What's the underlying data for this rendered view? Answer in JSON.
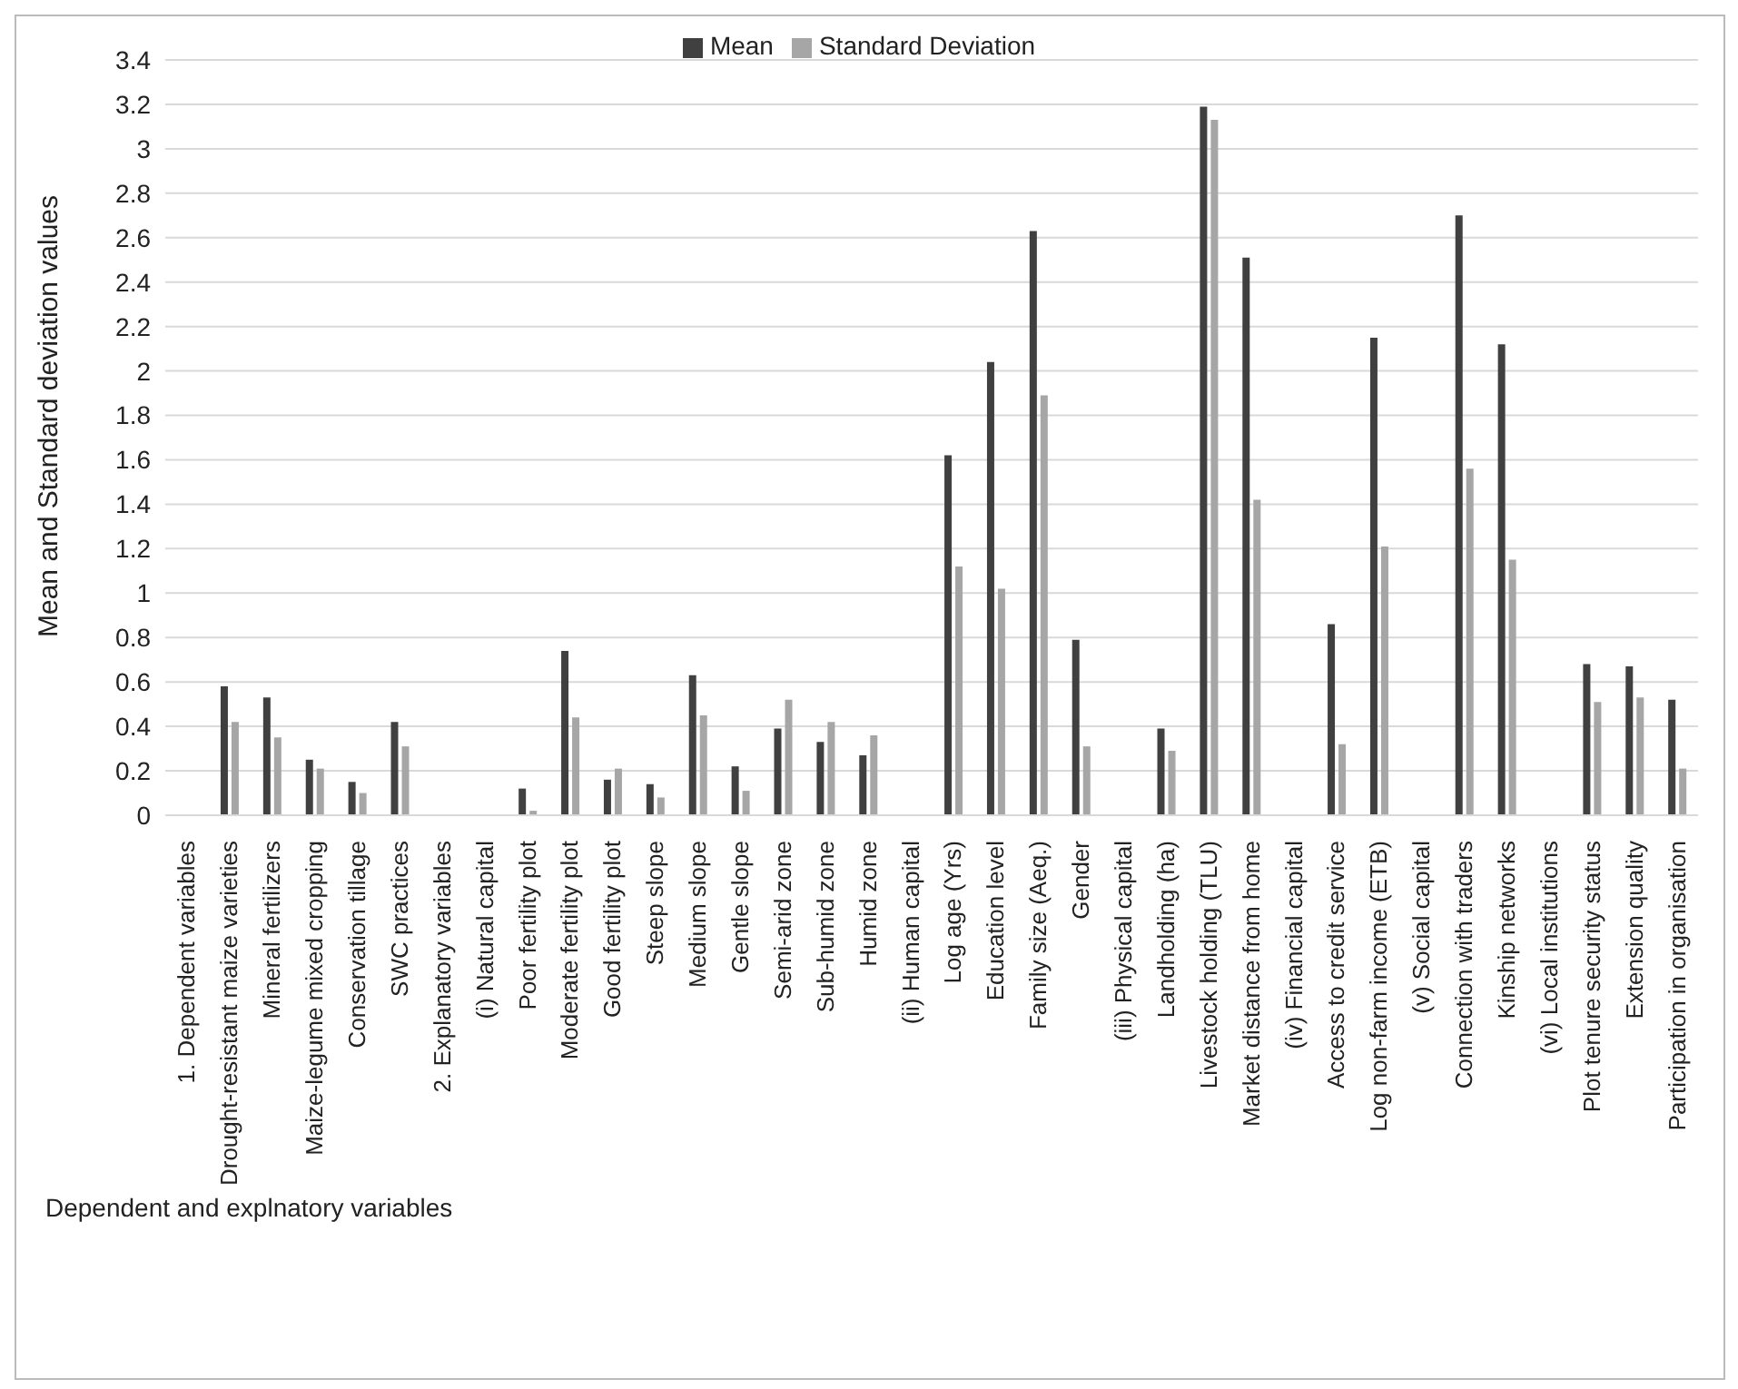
{
  "chart_data": {
    "type": "bar",
    "xlabel": "Dependent and explnatory variables",
    "ylabel": "Mean and Standard deviation values",
    "categories": [
      "1. Dependent variables",
      "Drought-resistant maize varieties",
      "Mineral fertilizers",
      "Maize-legume mixed cropping",
      "Conservation tillage",
      "SWC practices",
      "2. Explanatory variables",
      "(i) Natural capital",
      "Poor fertility plot",
      "Moderate fertility plot",
      "Good fertility plot",
      "Steep slope",
      "Medium slope",
      "Gentle slope",
      "Semi-arid zone",
      "Sub-humid zone",
      "Humid zone",
      "(ii) Human capital",
      "Log age (Yrs)",
      "Education level",
      "Family size (Aeq.)",
      "Gender",
      "(iii) Physical capital",
      "Landholding (ha)",
      "Livestock holding (TLU)",
      "Market distance from home",
      "(iv) Financial capital",
      "Access to credit service",
      "Log non-farm income (ETB)",
      "(v) Social capital",
      "Connection with traders",
      "Kinship networks",
      "(vi) Local institutions",
      "Plot tenure security status",
      "Extension quality",
      "Participation in organisation"
    ],
    "series": [
      {
        "name": "Mean",
        "color": "#404040",
        "values": [
          null,
          0.58,
          0.53,
          0.25,
          0.15,
          0.42,
          null,
          null,
          0.12,
          0.74,
          0.16,
          0.14,
          0.63,
          0.22,
          0.39,
          0.33,
          0.27,
          null,
          1.62,
          2.04,
          2.63,
          0.79,
          null,
          0.39,
          3.19,
          2.51,
          null,
          0.86,
          2.15,
          null,
          2.7,
          2.12,
          null,
          0.68,
          0.67,
          0.52
        ]
      },
      {
        "name": "Standard Deviation",
        "color": "#a6a6a6",
        "values": [
          null,
          0.42,
          0.35,
          0.21,
          0.1,
          0.31,
          null,
          null,
          0.02,
          0.44,
          0.21,
          0.08,
          0.45,
          0.11,
          0.52,
          0.42,
          0.36,
          null,
          1.12,
          1.02,
          1.89,
          0.31,
          null,
          0.29,
          3.13,
          1.42,
          null,
          0.32,
          1.21,
          null,
          1.56,
          1.15,
          null,
          0.51,
          0.53,
          0.21
        ]
      }
    ],
    "ylim": [
      0,
      3.4
    ],
    "yticks": [
      0,
      0.2,
      0.4,
      0.6,
      0.8,
      1,
      1.2,
      1.4,
      1.6,
      1.8,
      2,
      2.2,
      2.4,
      2.6,
      2.8,
      3,
      3.2,
      3.4
    ],
    "grid": "y",
    "legend": "top"
  }
}
